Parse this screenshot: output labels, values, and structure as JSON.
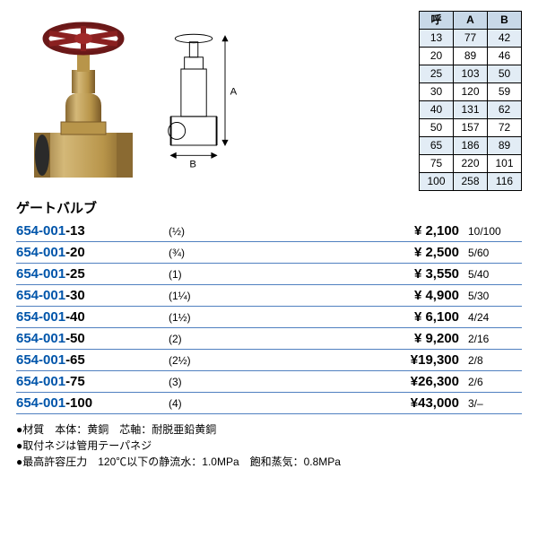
{
  "title": "ゲートバルブ",
  "dim_table": {
    "headers": [
      "呼",
      "A",
      "B"
    ],
    "rows": [
      [
        "13",
        "77",
        "42"
      ],
      [
        "20",
        "89",
        "46"
      ],
      [
        "25",
        "103",
        "50"
      ],
      [
        "30",
        "120",
        "59"
      ],
      [
        "40",
        "131",
        "62"
      ],
      [
        "50",
        "157",
        "72"
      ],
      [
        "65",
        "186",
        "89"
      ],
      [
        "75",
        "220",
        "101"
      ],
      [
        "100",
        "258",
        "116"
      ]
    ],
    "header_bg": "#c8d8e8",
    "alt_bg": "#e2ecf5"
  },
  "products": [
    {
      "code_prefix": "654-001",
      "code_suffix": "-13",
      "spec": "(½)",
      "price": "¥ 2,100",
      "qty": "10/100"
    },
    {
      "code_prefix": "654-001",
      "code_suffix": "-20",
      "spec": "(¾)",
      "price": "¥ 2,500",
      "qty": "5/60"
    },
    {
      "code_prefix": "654-001",
      "code_suffix": "-25",
      "spec": "(1)",
      "price": "¥ 3,550",
      "qty": "5/40"
    },
    {
      "code_prefix": "654-001",
      "code_suffix": "-30",
      "spec": "(1¼)",
      "price": "¥ 4,900",
      "qty": "5/30"
    },
    {
      "code_prefix": "654-001",
      "code_suffix": "-40",
      "spec": "(1½)",
      "price": "¥ 6,100",
      "qty": "4/24"
    },
    {
      "code_prefix": "654-001",
      "code_suffix": "-50",
      "spec": "(2)",
      "price": "¥ 9,200",
      "qty": "2/16"
    },
    {
      "code_prefix": "654-001",
      "code_suffix": "-65",
      "spec": "(2½)",
      "price": "¥19,300",
      "qty": "2/8"
    },
    {
      "code_prefix": "654-001",
      "code_suffix": "-75",
      "spec": "(3)",
      "price": "¥26,300",
      "qty": "2/6"
    },
    {
      "code_prefix": "654-001",
      "code_suffix": "-100",
      "spec": "(4)",
      "price": "¥43,000",
      "qty": "3/–"
    }
  ],
  "notes": [
    "材質　本体：黄銅　芯軸：耐脱亜鉛黄銅",
    "取付ネジは管用テーパネジ",
    "最高許容圧力　120℃以下の静流水：1.0MPa　飽和蒸気：0.8MPa"
  ],
  "colors": {
    "blue": "#0055aa",
    "rule": "#5080c0",
    "brass": "#b8954a",
    "brass_light": "#d4b878",
    "brass_dark": "#8a6a32",
    "handle": "#a02828",
    "handle_dark": "#6a1818"
  },
  "diagram": {
    "labelA": "A",
    "labelB": "B"
  }
}
